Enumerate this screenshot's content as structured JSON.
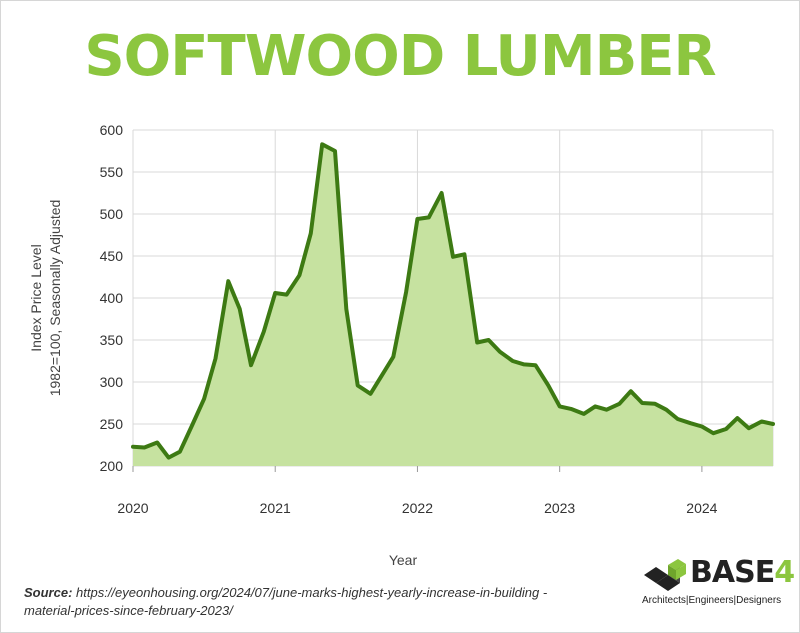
{
  "title": "SOFTWOOD LUMBER",
  "source": {
    "label": "Source:",
    "text": " https://eyeonhousing.org/2024/07/june-marks-highest-yearly-increase-in-building -material-prices-since-february-2023/"
  },
  "logo": {
    "name": "BASE",
    "number": "4",
    "tagline": "Architects|Engineers|Designers"
  },
  "colors": {
    "title": "#8cc63f",
    "line": "#3d7a13",
    "fill": "#c6e2a0",
    "grid": "#d9d9d9"
  },
  "chart_data": {
    "type": "area",
    "title": "SOFTWOOD LUMBER",
    "xlabel": "Year",
    "ylabel": [
      "Index Price Level",
      "1982=100, Seasonally Adjusted"
    ],
    "xlim": [
      2020,
      2024.5
    ],
    "ylim": [
      200,
      600
    ],
    "xticks": [
      2020,
      2021,
      2022,
      2023,
      2024
    ],
    "yticks": [
      200,
      250,
      300,
      350,
      400,
      450,
      500,
      550,
      600
    ],
    "grid": true,
    "series": [
      {
        "x": [
          2020.0,
          2020.08,
          2020.17,
          2020.25,
          2020.33,
          2020.42,
          2020.5,
          2020.58,
          2020.67,
          2020.75,
          2020.83,
          2020.92,
          2021.0,
          2021.08,
          2021.17,
          2021.25,
          2021.33,
          2021.42,
          2021.5,
          2021.58,
          2021.67,
          2021.75,
          2021.83,
          2021.92,
          2022.0,
          2022.08,
          2022.17,
          2022.25,
          2022.33,
          2022.42,
          2022.5,
          2022.58,
          2022.67,
          2022.75,
          2022.83,
          2022.92,
          2023.0,
          2023.08,
          2023.17,
          2023.25,
          2023.33,
          2023.42,
          2023.5,
          2023.58,
          2023.67,
          2023.75,
          2023.83,
          2023.92,
          2024.0,
          2024.08,
          2024.17,
          2024.25,
          2024.33,
          2024.42,
          2024.5
        ],
        "values": [
          223,
          222,
          228,
          210,
          217,
          250,
          280,
          328,
          420,
          387,
          320,
          360,
          406,
          404,
          427,
          477,
          583,
          575,
          387,
          296,
          286,
          308,
          330,
          407,
          494,
          496,
          525,
          449,
          452,
          347,
          350,
          336,
          325,
          321,
          320,
          296,
          271,
          268,
          262,
          271,
          267,
          274,
          289,
          275,
          274,
          267,
          256,
          251,
          247,
          239,
          244,
          257,
          245,
          253,
          250
        ]
      }
    ]
  }
}
